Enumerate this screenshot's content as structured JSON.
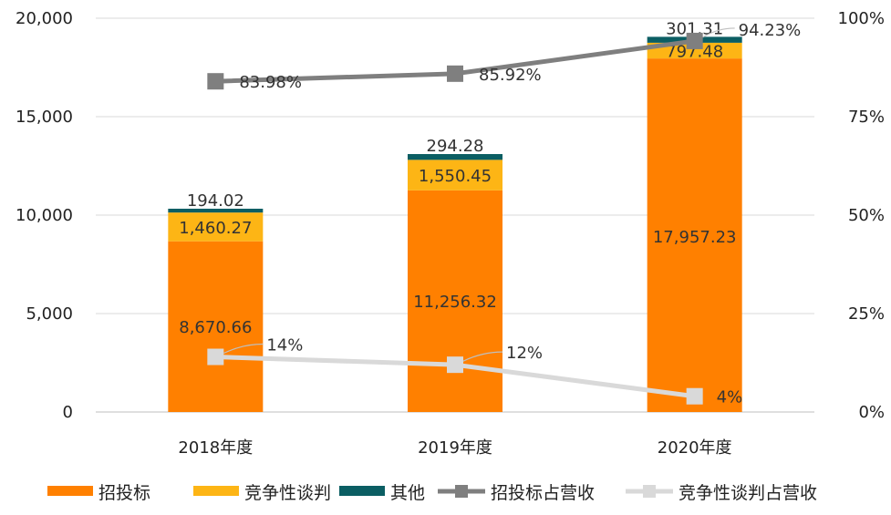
{
  "chart_data": {
    "type": "bar",
    "stacked": true,
    "categories": [
      "2018年度",
      "2019年度",
      "2020年度"
    ],
    "series": [
      {
        "name": "招投标",
        "type": "bar",
        "axis": "left",
        "color": "#FF8000",
        "values": [
          8670.66,
          11256.32,
          17957.23
        ],
        "labels": [
          "8,670.66",
          "11,256.32",
          "17,957.23"
        ]
      },
      {
        "name": "竞争性谈判",
        "type": "bar",
        "axis": "left",
        "color": "#FDB515",
        "values": [
          1460.27,
          1550.45,
          797.48
        ],
        "labels": [
          "1,460.27",
          "1,550.45",
          "797.48"
        ]
      },
      {
        "name": "其他",
        "type": "bar",
        "axis": "left",
        "color": "#0B5E63",
        "values": [
          194.02,
          294.28,
          301.31
        ],
        "labels": [
          "194.02",
          "294.28",
          "301.31"
        ]
      },
      {
        "name": "招投标占营收",
        "type": "line",
        "axis": "right",
        "color": "#7F7F7F",
        "values": [
          83.98,
          85.92,
          94.23
        ],
        "labels": [
          "83.98%",
          "85.92%",
          "94.23%"
        ]
      },
      {
        "name": "竞争性谈判占营收",
        "type": "line",
        "axis": "right",
        "color": "#D9D9D9",
        "values": [
          14,
          12,
          4
        ],
        "labels": [
          "14%",
          "12%",
          "4%"
        ]
      }
    ],
    "y_left": {
      "min": 0,
      "max": 20000,
      "ticks": [
        "0",
        "5,000",
        "10,000",
        "15,000",
        "20,000"
      ]
    },
    "y_right": {
      "min": 0,
      "max": 100,
      "ticks": [
        "0%",
        "25%",
        "50%",
        "75%",
        "100%"
      ]
    },
    "grid": true,
    "legend_position": "bottom"
  }
}
